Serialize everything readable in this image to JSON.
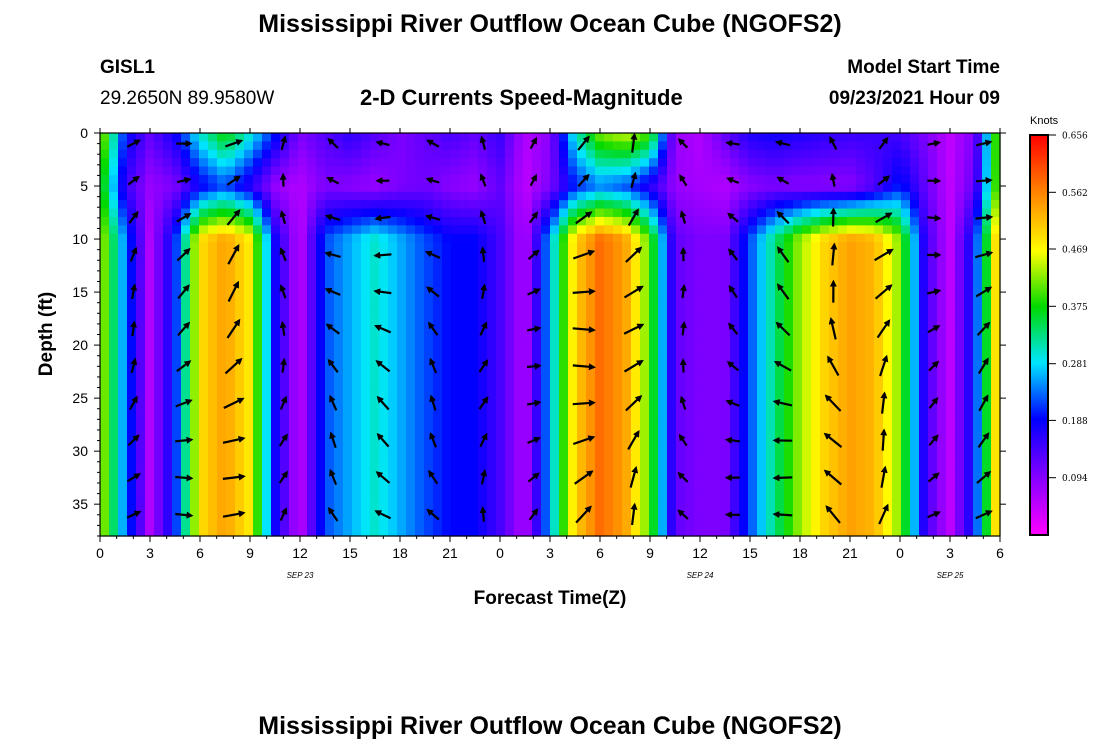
{
  "header": {
    "title": "Mississippi River Outflow Ocean Cube (NGOFS2)",
    "station": "GISL1",
    "coords": "29.2650N  89.9580W",
    "subtitle": "2-D Currents Speed-Magnitude",
    "model_start_label": "Model Start Time",
    "model_start_value": "09/23/2021 Hour 09"
  },
  "footer": {
    "title": "Mississippi River Outflow Ocean Cube (NGOFS2)"
  },
  "chart_data": {
    "type": "heatmap",
    "xlabel": "Forecast Time(Z)",
    "ylabel": "Depth (ft)",
    "x_range_hours": [
      0,
      54
    ],
    "x_tick_labels": [
      "0",
      "3",
      "6",
      "9",
      "12",
      "15",
      "18",
      "21",
      "0",
      "3",
      "6",
      "9",
      "12",
      "15",
      "18",
      "21",
      "0",
      "3",
      "6"
    ],
    "date_labels": [
      {
        "label": "SEP 23",
        "hour": 12
      },
      {
        "label": "SEP 24",
        "hour": 36
      },
      {
        "label": "SEP 25",
        "hour": 51
      }
    ],
    "y_range_ft": [
      0,
      38
    ],
    "y_ticks": [
      0,
      5,
      10,
      15,
      20,
      25,
      30,
      35
    ],
    "colorbar": {
      "units": "Knots",
      "min": 0.0,
      "max": 0.656,
      "labels": [
        "0.656",
        "0.562",
        "0.469",
        "0.375",
        "0.281",
        "0.188",
        "0.094"
      ]
    },
    "speed_profile": {
      "hours": [
        0.0,
        1.5,
        3.0,
        4.5,
        6.0,
        7.5,
        9.0,
        10.5,
        12.0,
        13.5,
        15.0,
        16.5,
        18.0,
        19.5,
        21.0,
        22.5,
        24.0,
        25.5,
        27.0,
        28.5,
        30.0,
        31.5,
        33.0,
        34.5,
        36.0,
        37.5,
        39.0,
        40.5,
        42.0,
        43.5,
        45.0,
        46.5,
        48.0,
        49.5,
        51.0,
        52.5,
        54.0
      ],
      "surface_knots": [
        0.45,
        0.2,
        0.12,
        0.18,
        0.3,
        0.38,
        0.3,
        0.2,
        0.1,
        0.13,
        0.16,
        0.13,
        0.1,
        0.12,
        0.14,
        0.12,
        0.15,
        0.06,
        0.09,
        0.3,
        0.42,
        0.45,
        0.4,
        0.08,
        0.06,
        0.12,
        0.17,
        0.18,
        0.17,
        0.16,
        0.15,
        0.15,
        0.14,
        0.1,
        0.05,
        0.1,
        0.45
      ],
      "mid_knots": [
        0.4,
        0.15,
        0.08,
        0.1,
        0.18,
        0.22,
        0.16,
        0.08,
        0.06,
        0.1,
        0.09,
        0.08,
        0.1,
        0.11,
        0.09,
        0.08,
        0.12,
        0.05,
        0.1,
        0.2,
        0.24,
        0.22,
        0.16,
        0.08,
        0.07,
        0.06,
        0.09,
        0.1,
        0.09,
        0.09,
        0.09,
        0.13,
        0.2,
        0.12,
        0.05,
        0.12,
        0.45
      ],
      "deep_knots": [
        0.45,
        0.24,
        0.06,
        0.2,
        0.49,
        0.54,
        0.48,
        0.18,
        0.05,
        0.22,
        0.26,
        0.3,
        0.26,
        0.22,
        0.19,
        0.19,
        0.14,
        0.06,
        0.26,
        0.5,
        0.58,
        0.54,
        0.4,
        0.12,
        0.1,
        0.1,
        0.22,
        0.33,
        0.43,
        0.5,
        0.54,
        0.52,
        0.42,
        0.15,
        0.05,
        0.2,
        0.55
      ],
      "deep_start_ft": 10
    }
  }
}
